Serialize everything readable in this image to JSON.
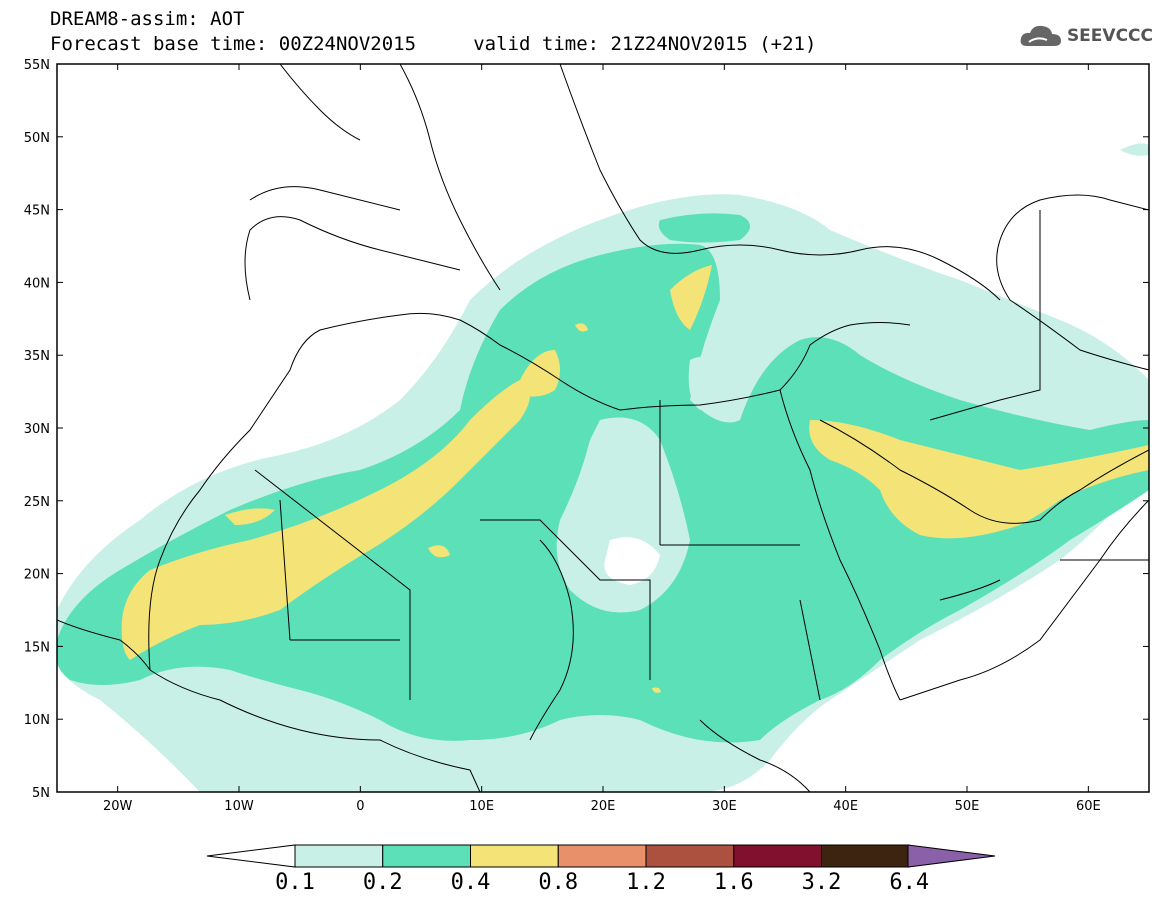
{
  "header": {
    "line1": "DREAM8-assim: AOT",
    "line2": "Forecast base time: 00Z24NOV2015     valid time: 21Z24NOV2015 (+21)"
  },
  "logo": {
    "text": "SEEVCCC",
    "icon": "cloud-icon"
  },
  "map": {
    "lat_labels": [
      "55N",
      "50N",
      "45N",
      "40N",
      "35N",
      "30N",
      "25N",
      "20N",
      "15N",
      "10N",
      "5N"
    ],
    "lon_labels": [
      "20W",
      "10W",
      "0",
      "10E",
      "20E",
      "30E",
      "40E",
      "50E",
      "60E"
    ]
  },
  "colorbar": {
    "colors": [
      "#c8f0e6",
      "#5ce0b8",
      "#f4e478",
      "#e8906a",
      "#ac5040",
      "#80102e",
      "#3c2410",
      "#8a60a8"
    ],
    "under_color": "#ffffff",
    "labels": [
      "0.1",
      "0.2",
      "0.4",
      "0.8",
      "1.2",
      "1.6",
      "3.2",
      "6.4"
    ]
  }
}
